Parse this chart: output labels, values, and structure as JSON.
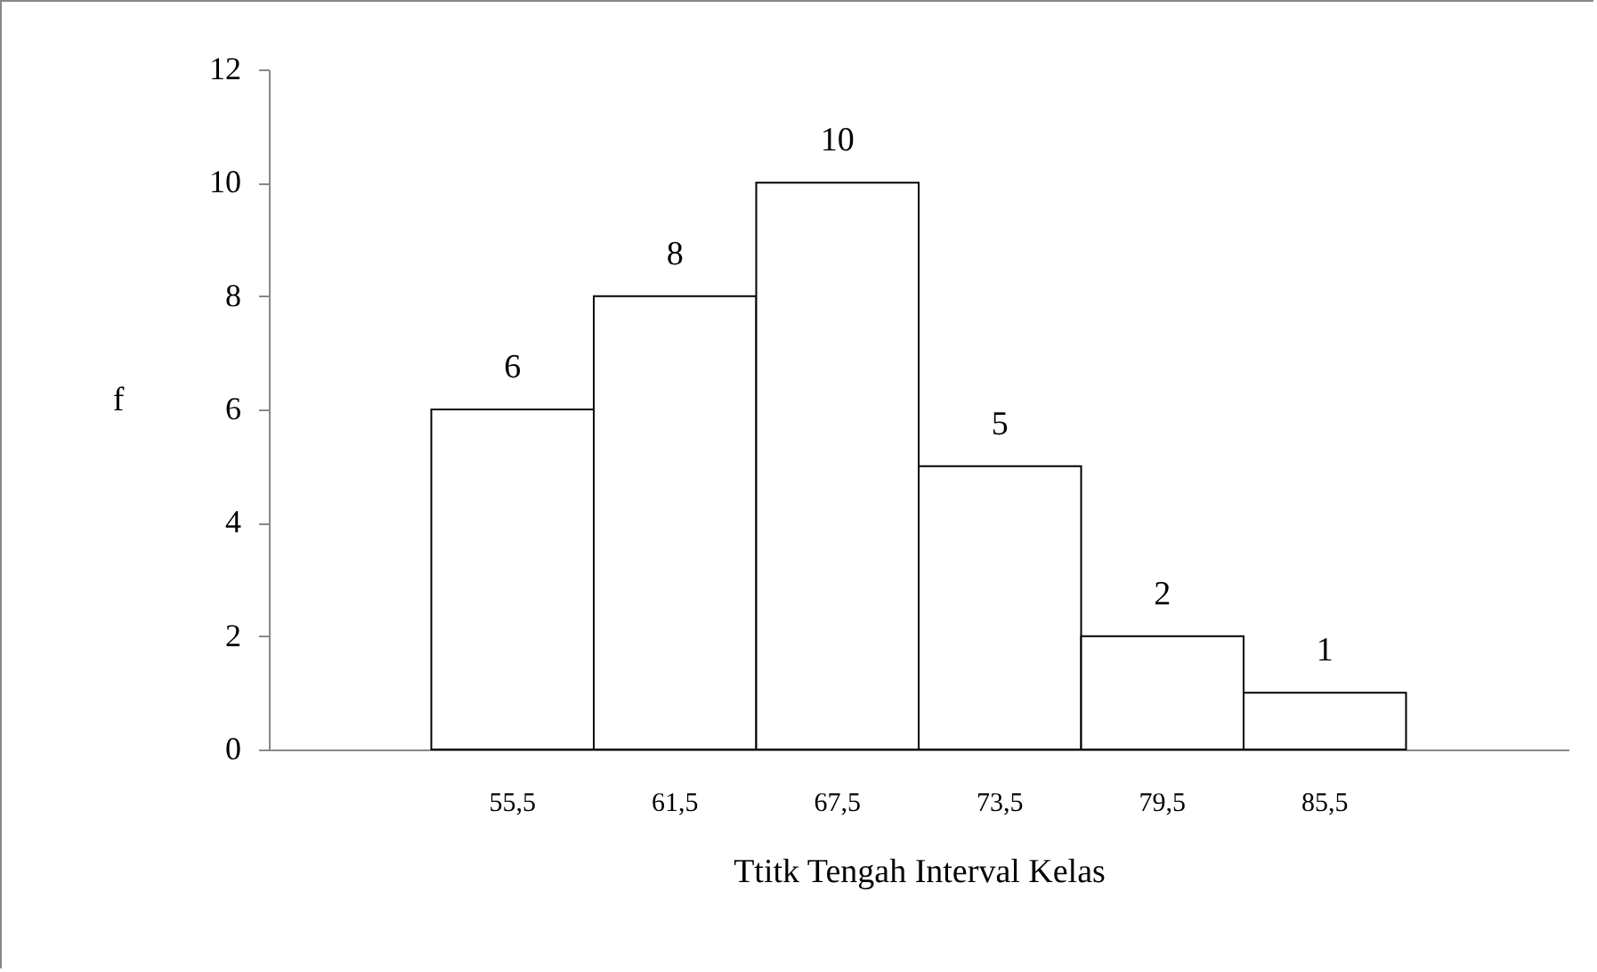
{
  "chart_data": {
    "type": "bar",
    "xlabel": "Ttitk Tengah Interval Kelas",
    "ylabel": "f",
    "categories": [
      null,
      "55,5",
      "61,5",
      "67,5",
      "73,5",
      "79,5",
      "85,5",
      null
    ],
    "values": [
      null,
      6,
      8,
      10,
      5,
      2,
      1,
      null
    ],
    "color": "#ffffff",
    "ylim": [
      0,
      12
    ],
    "yticks": [
      0,
      2,
      4,
      6,
      8,
      10,
      12
    ],
    "grid": false,
    "data_labels": true
  }
}
